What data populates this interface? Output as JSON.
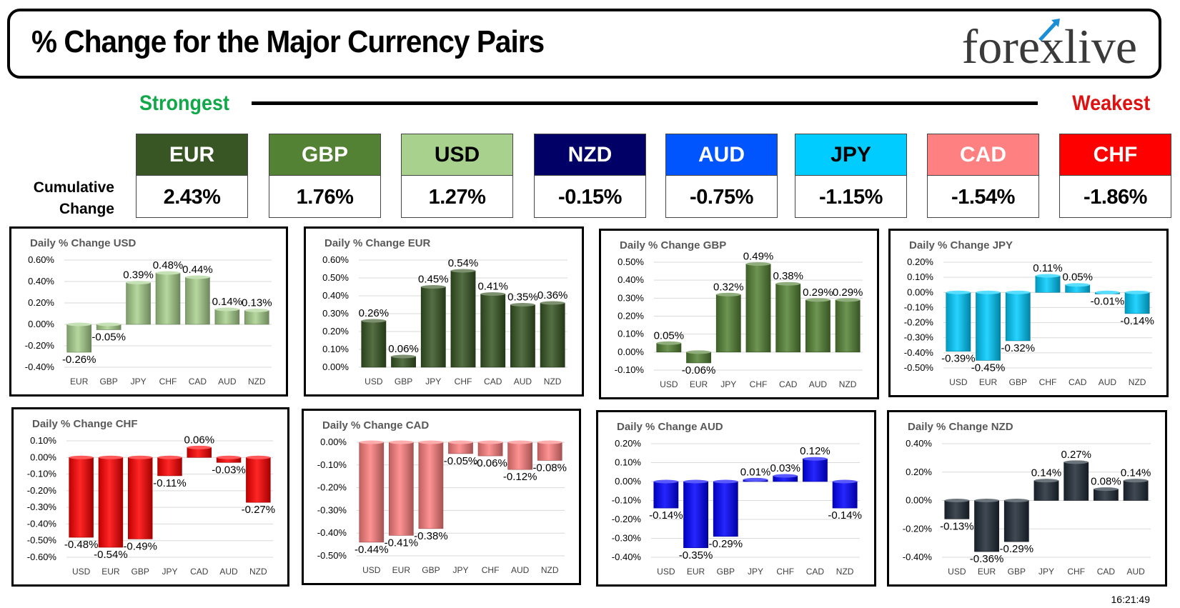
{
  "header": {
    "title": "% Change for the Major Currency Pairs",
    "logo_text": "forexlive",
    "strongest_label": "Strongest",
    "weakest_label": "Weakest",
    "cumulative_label_line1": "Cumulative",
    "cumulative_label_line2": "Change"
  },
  "colors": {
    "strongest": "#12a84a",
    "weakest": "#e01010"
  },
  "currencies": [
    {
      "code": "EUR",
      "value": "2.43%",
      "bg": "#375623",
      "fg": "#ffffff"
    },
    {
      "code": "GBP",
      "value": "1.76%",
      "bg": "#548235",
      "fg": "#ffffff"
    },
    {
      "code": "USD",
      "value": "1.27%",
      "bg": "#a9d18e",
      "fg": "#000000"
    },
    {
      "code": "NZD",
      "value": "-0.15%",
      "bg": "#000066",
      "fg": "#ffffff"
    },
    {
      "code": "AUD",
      "value": "-0.75%",
      "bg": "#0055ff",
      "fg": "#ffffff"
    },
    {
      "code": "JPY",
      "value": "-1.15%",
      "bg": "#00ccff",
      "fg": "#000000"
    },
    {
      "code": "CAD",
      "value": "-1.54%",
      "bg": "#ff8080",
      "fg": "#ffffff"
    },
    {
      "code": "CHF",
      "value": "-1.86%",
      "bg": "#ff0000",
      "fg": "#ffffff"
    }
  ],
  "chart_data": [
    {
      "type": "bar",
      "title": "Daily % Change USD",
      "categories": [
        "EUR",
        "GBP",
        "JPY",
        "CHF",
        "CAD",
        "AUD",
        "NZD"
      ],
      "values": [
        -0.26,
        -0.05,
        0.39,
        0.48,
        0.44,
        0.14,
        0.13
      ],
      "ylim": [
        -0.4,
        0.6
      ],
      "yticks": [
        -0.4,
        -0.2,
        0,
        0.2,
        0.4,
        0.6
      ],
      "color": "#a9d18e",
      "grid": true
    },
    {
      "type": "bar",
      "title": "Daily % Change EUR",
      "categories": [
        "USD",
        "GBP",
        "JPY",
        "CHF",
        "CAD",
        "AUD",
        "NZD"
      ],
      "values": [
        0.26,
        0.06,
        0.45,
        0.54,
        0.41,
        0.35,
        0.36
      ],
      "ylim": [
        0,
        0.6
      ],
      "yticks": [
        0,
        0.1,
        0.2,
        0.3,
        0.4,
        0.5,
        0.6
      ],
      "color": "#375623",
      "grid": true
    },
    {
      "type": "bar",
      "title": "Daily % Change GBP",
      "categories": [
        "USD",
        "EUR",
        "JPY",
        "CHF",
        "CAD",
        "AUD",
        "NZD"
      ],
      "values": [
        0.05,
        -0.06,
        0.32,
        0.49,
        0.38,
        0.29,
        0.29
      ],
      "ylim": [
        -0.1,
        0.5
      ],
      "yticks": [
        -0.1,
        0,
        0.1,
        0.2,
        0.3,
        0.4,
        0.5
      ],
      "color": "#548235",
      "grid": true
    },
    {
      "type": "bar",
      "title": "Daily % Change JPY",
      "categories": [
        "USD",
        "EUR",
        "GBP",
        "CHF",
        "CAD",
        "AUD",
        "NZD"
      ],
      "values": [
        -0.39,
        -0.45,
        -0.32,
        0.11,
        0.05,
        -0.01,
        -0.14
      ],
      "ylim": [
        -0.5,
        0.2
      ],
      "yticks": [
        -0.5,
        -0.4,
        -0.3,
        -0.2,
        -0.1,
        0,
        0.1,
        0.2
      ],
      "color": "#00ccff",
      "grid": true
    },
    {
      "type": "bar",
      "title": "Daily % Change CHF",
      "categories": [
        "USD",
        "EUR",
        "GBP",
        "JPY",
        "CAD",
        "AUD",
        "NZD"
      ],
      "values": [
        -0.48,
        -0.54,
        -0.49,
        -0.11,
        0.06,
        -0.03,
        -0.27
      ],
      "ylim": [
        -0.6,
        0.1
      ],
      "yticks": [
        -0.6,
        -0.5,
        -0.4,
        -0.3,
        -0.2,
        -0.1,
        0,
        0.1
      ],
      "color": "#ff0000",
      "grid": true
    },
    {
      "type": "bar",
      "title": "Daily % Change CAD",
      "categories": [
        "USD",
        "EUR",
        "GBP",
        "JPY",
        "CHF",
        "AUD",
        "NZD"
      ],
      "values": [
        -0.44,
        -0.41,
        -0.38,
        -0.05,
        -0.06,
        -0.12,
        -0.08
      ],
      "ylim": [
        -0.5,
        0
      ],
      "yticks": [
        -0.5,
        -0.4,
        -0.3,
        -0.2,
        -0.1,
        0
      ],
      "color": "#ff8080",
      "grid": true
    },
    {
      "type": "bar",
      "title": "Daily % Change AUD",
      "categories": [
        "USD",
        "EUR",
        "GBP",
        "JPY",
        "CHF",
        "CAD",
        "NZD"
      ],
      "values": [
        -0.14,
        -0.35,
        -0.29,
        0.01,
        0.03,
        0.12,
        -0.14
      ],
      "ylim": [
        -0.4,
        0.2
      ],
      "yticks": [
        -0.4,
        -0.3,
        -0.2,
        -0.1,
        0,
        0.1,
        0.2
      ],
      "color": "#0000ff",
      "grid": true
    },
    {
      "type": "bar",
      "title": "Daily % Change NZD",
      "categories": [
        "USD",
        "EUR",
        "GBP",
        "JPY",
        "CHF",
        "CAD",
        "AUD"
      ],
      "values": [
        -0.13,
        -0.36,
        -0.29,
        0.14,
        0.27,
        0.08,
        0.14
      ],
      "ylim": [
        -0.4,
        0.4
      ],
      "yticks": [
        -0.4,
        -0.2,
        0,
        0.2,
        0.4
      ],
      "color": "#1f2a36",
      "grid": true
    }
  ],
  "timestamp": "16:21:49"
}
